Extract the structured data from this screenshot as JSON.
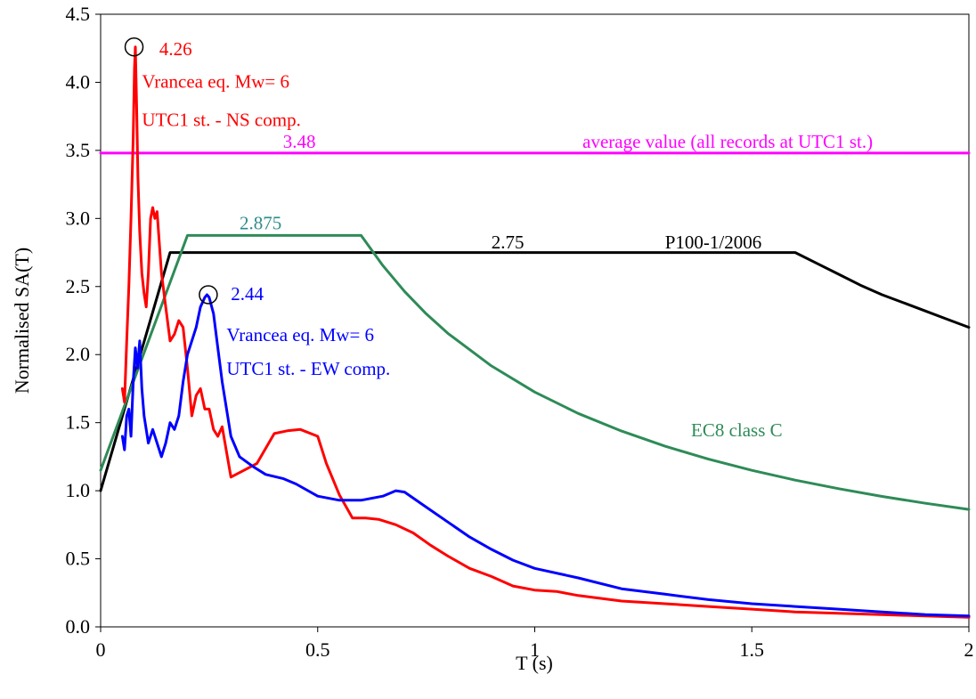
{
  "chart_data": {
    "type": "line",
    "title": "",
    "xlabel": "T (s)",
    "ylabel": "Normalised SA(T)",
    "xlim": [
      0,
      2
    ],
    "ylim": [
      0,
      4.5
    ],
    "grid": false,
    "legend": "none",
    "x_ticks": [
      0,
      0.5,
      1,
      1.5,
      2
    ],
    "x_tick_labels": [
      "0",
      "0.5",
      "1",
      "1.5",
      "2"
    ],
    "y_ticks": [
      0,
      0.5,
      1,
      1.5,
      2,
      2.5,
      3,
      3.5,
      4,
      4.5
    ],
    "y_tick_labels": [
      "0.0",
      "0.5",
      "1.0",
      "1.5",
      "2.0",
      "2.5",
      "3.0",
      "3.5",
      "4.0",
      "4.5"
    ],
    "series": [
      {
        "key": "average",
        "color": "#ff00ff",
        "x": [
          0,
          2
        ],
        "y": [
          3.48,
          3.48
        ]
      },
      {
        "key": "p100",
        "color": "#000000",
        "x": [
          0,
          0.16,
          1.6,
          1.65,
          1.7,
          1.75,
          1.8,
          1.85,
          1.9,
          1.95,
          2.0
        ],
        "y": [
          1.0,
          2.75,
          2.75,
          2.67,
          2.59,
          2.51,
          2.44,
          2.38,
          2.32,
          2.26,
          2.2
        ]
      },
      {
        "key": "ec8",
        "color": "#2e8b57",
        "x": [
          0,
          0.2,
          0.6,
          0.65,
          0.7,
          0.75,
          0.8,
          0.9,
          1.0,
          1.1,
          1.2,
          1.3,
          1.4,
          1.5,
          1.6,
          1.7,
          1.8,
          1.9,
          2.0
        ],
        "y": [
          1.15,
          2.875,
          2.875,
          2.654,
          2.464,
          2.3,
          2.156,
          1.917,
          1.725,
          1.568,
          1.438,
          1.327,
          1.232,
          1.15,
          1.078,
          1.015,
          0.958,
          0.908,
          0.863
        ]
      },
      {
        "key": "ns",
        "color": "#ff0000",
        "x": [
          0.05,
          0.055,
          0.06,
          0.065,
          0.07,
          0.075,
          0.078,
          0.08,
          0.083,
          0.086,
          0.09,
          0.095,
          0.1,
          0.105,
          0.11,
          0.115,
          0.12,
          0.125,
          0.13,
          0.14,
          0.15,
          0.16,
          0.17,
          0.18,
          0.19,
          0.2,
          0.21,
          0.22,
          0.23,
          0.24,
          0.25,
          0.26,
          0.27,
          0.28,
          0.3,
          0.33,
          0.36,
          0.4,
          0.43,
          0.46,
          0.5,
          0.52,
          0.55,
          0.58,
          0.61,
          0.64,
          0.68,
          0.72,
          0.76,
          0.8,
          0.85,
          0.9,
          0.95,
          1.0,
          1.05,
          1.1,
          1.2,
          1.3,
          1.4,
          1.5,
          1.6,
          1.7,
          1.8,
          1.9,
          2.0
        ],
        "y": [
          1.75,
          1.65,
          2.1,
          2.5,
          3.0,
          3.6,
          4.1,
          4.26,
          3.8,
          3.3,
          2.9,
          2.6,
          2.45,
          2.35,
          2.6,
          3.0,
          3.08,
          3.0,
          3.05,
          2.6,
          2.35,
          2.1,
          2.15,
          2.25,
          2.2,
          1.9,
          1.55,
          1.7,
          1.75,
          1.6,
          1.6,
          1.45,
          1.4,
          1.47,
          1.1,
          1.15,
          1.2,
          1.42,
          1.44,
          1.45,
          1.4,
          1.2,
          0.97,
          0.8,
          0.8,
          0.79,
          0.75,
          0.69,
          0.6,
          0.52,
          0.43,
          0.37,
          0.3,
          0.27,
          0.26,
          0.23,
          0.19,
          0.17,
          0.15,
          0.13,
          0.11,
          0.1,
          0.09,
          0.08,
          0.07
        ]
      },
      {
        "key": "ew",
        "color": "#0000ff",
        "x": [
          0.05,
          0.055,
          0.06,
          0.065,
          0.07,
          0.075,
          0.08,
          0.085,
          0.09,
          0.095,
          0.1,
          0.11,
          0.12,
          0.13,
          0.14,
          0.15,
          0.16,
          0.17,
          0.18,
          0.19,
          0.2,
          0.21,
          0.22,
          0.23,
          0.24,
          0.245,
          0.25,
          0.26,
          0.27,
          0.28,
          0.3,
          0.32,
          0.35,
          0.38,
          0.42,
          0.45,
          0.5,
          0.55,
          0.6,
          0.65,
          0.68,
          0.7,
          0.75,
          0.8,
          0.85,
          0.9,
          0.95,
          1.0,
          1.1,
          1.2,
          1.3,
          1.4,
          1.5,
          1.6,
          1.7,
          1.8,
          1.9,
          2.0
        ],
        "y": [
          1.4,
          1.3,
          1.55,
          1.6,
          1.4,
          1.8,
          2.05,
          1.9,
          2.1,
          1.75,
          1.55,
          1.35,
          1.45,
          1.35,
          1.25,
          1.35,
          1.5,
          1.45,
          1.55,
          1.8,
          2.0,
          2.1,
          2.2,
          2.35,
          2.42,
          2.44,
          2.42,
          2.3,
          2.05,
          1.8,
          1.4,
          1.25,
          1.18,
          1.12,
          1.09,
          1.05,
          0.96,
          0.93,
          0.93,
          0.96,
          1.0,
          0.99,
          0.88,
          0.77,
          0.66,
          0.57,
          0.49,
          0.43,
          0.36,
          0.28,
          0.24,
          0.2,
          0.17,
          0.15,
          0.13,
          0.11,
          0.09,
          0.08
        ]
      }
    ],
    "annotations": [
      {
        "key": "ns_peak_value",
        "text": "4.26",
        "x": 0.135,
        "y": 4.2,
        "color": "#ff0000"
      },
      {
        "key": "ns_title",
        "text": "Vrancea eq. Mw= 6",
        "x": 0.095,
        "y": 3.96,
        "color": "#ff0000"
      },
      {
        "key": "ns_station",
        "text": "UTC1 st. - NS comp.",
        "x": 0.095,
        "y": 3.68,
        "color": "#ff0000"
      },
      {
        "key": "avg_value",
        "text": "3.48",
        "x": 0.42,
        "y": 3.52,
        "color": "#ff00ff"
      },
      {
        "key": "avg_label",
        "text": "average value (all records at UTC1 st.)",
        "x": 1.11,
        "y": 3.52,
        "color": "#ff00ff"
      },
      {
        "key": "ec8_value",
        "text": "2.875",
        "x": 0.32,
        "y": 2.92,
        "color": "#2e8b8b"
      },
      {
        "key": "p100_value",
        "text": "2.75",
        "x": 0.9,
        "y": 2.78,
        "color": "#000000"
      },
      {
        "key": "p100_label",
        "text": "P100-1/2006",
        "x": 1.3,
        "y": 2.78,
        "color": "#000000"
      },
      {
        "key": "ew_peak_value",
        "text": "2.44",
        "x": 0.3,
        "y": 2.4,
        "color": "#0000ff"
      },
      {
        "key": "ew_title",
        "text": "Vrancea eq. Mw= 6",
        "x": 0.29,
        "y": 2.1,
        "color": "#0000ff"
      },
      {
        "key": "ew_station",
        "text": "UTC1 st. - EW comp.",
        "x": 0.29,
        "y": 1.85,
        "color": "#0000ff"
      },
      {
        "key": "ec8_label",
        "text": "EC8 class C",
        "x": 1.36,
        "y": 1.4,
        "color": "#2e8b57"
      }
    ],
    "markers": [
      {
        "key": "ns_peak_circle",
        "x": 0.077,
        "y": 4.26
      },
      {
        "key": "ew_peak_circle",
        "x": 0.248,
        "y": 2.44
      }
    ]
  }
}
